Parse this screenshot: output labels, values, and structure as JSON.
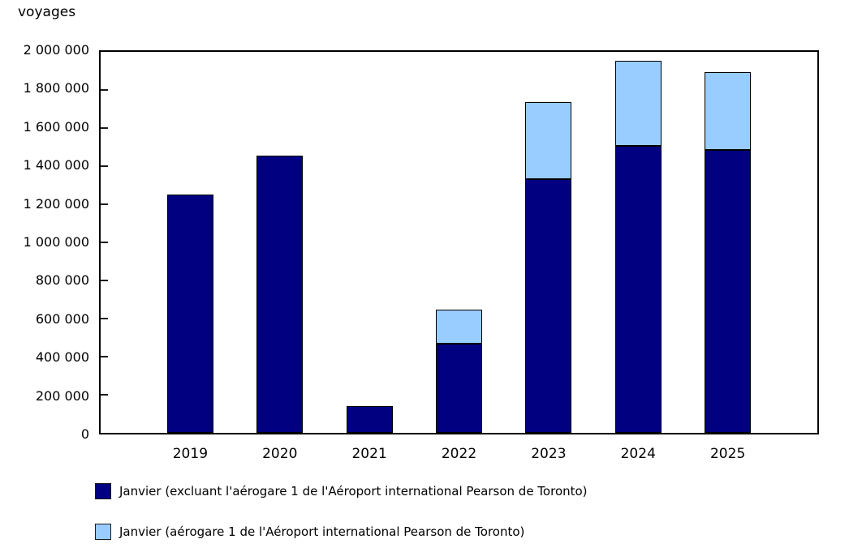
{
  "page": {
    "background": "#ffffff",
    "frame_color": "#000000"
  },
  "axis": {
    "unit_label": "voyages"
  },
  "chart_data": {
    "type": "bar",
    "stacked": true,
    "title": "voyages",
    "xlabel": "",
    "ylabel": "voyages",
    "categories": [
      "2019",
      "2020",
      "2021",
      "2022",
      "2023",
      "2024",
      "2025"
    ],
    "series": [
      {
        "name": "Janvier (excluant l'aérogare 1 de l'Aéroport international Pearson de Toronto)",
        "color": "#000080",
        "values": [
          1250000,
          1455000,
          140000,
          470000,
          1330000,
          1505000,
          1485000
        ]
      },
      {
        "name": "Janvier (aérogare 1 de l'Aéroport international Pearson de Toronto)",
        "color": "#99CCFF",
        "values": [
          0,
          0,
          0,
          180000,
          405000,
          445000,
          410000
        ]
      }
    ],
    "totals": [
      1250000,
      1455000,
      140000,
      650000,
      1735000,
      1950000,
      1895000
    ],
    "ylim": [
      0,
      2000000
    ],
    "ytick_step": 200000,
    "ytick_labels_top_to_bottom": [
      "2 000 000",
      "1 800 000",
      "1 600 000",
      "1 400 000",
      "1 200 000",
      "1 000 000",
      "800 000",
      "600 000",
      "400 000",
      "200 000",
      "0"
    ],
    "grid": false,
    "legend_position": "bottom"
  }
}
